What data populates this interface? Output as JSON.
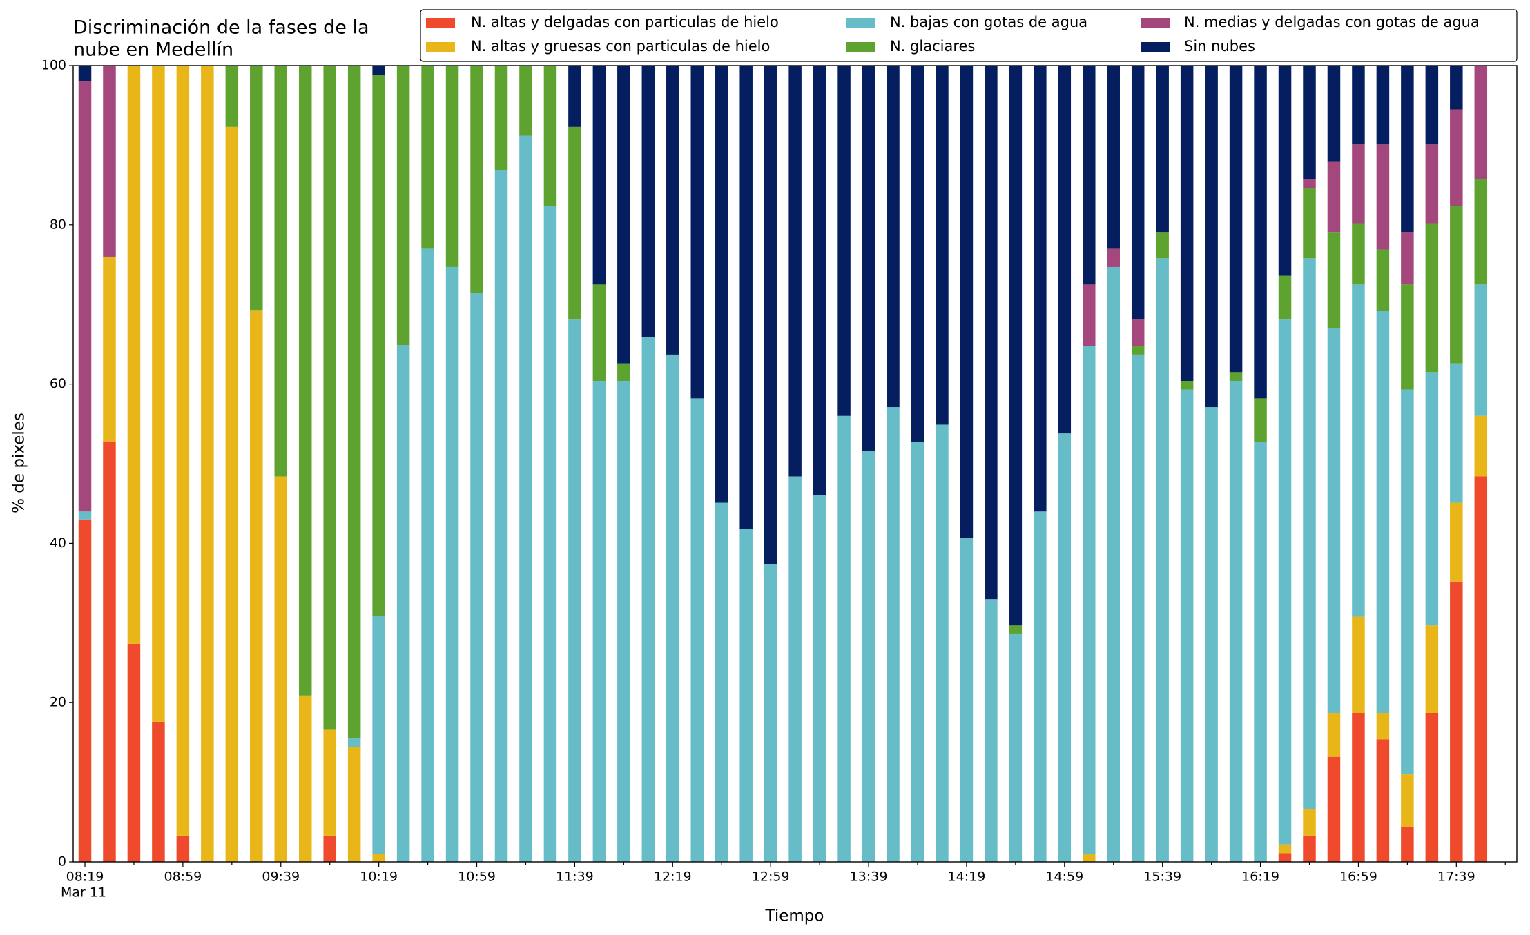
{
  "chart_data": {
    "type": "stacked_bar",
    "title": [
      "Discriminación de la fases de la",
      "nube en Medellín"
    ],
    "xlabel": "Tiempo",
    "ylabel": "% de pixeles",
    "date_label": "Mar 11",
    "categories": [
      "08:19",
      null,
      null,
      null,
      "08:59",
      null,
      null,
      null,
      "09:39",
      null,
      null,
      null,
      "10:19",
      null,
      null,
      null,
      "10:59",
      null,
      null,
      null,
      "11:39",
      null,
      null,
      null,
      "12:19",
      null,
      null,
      null,
      "12:59",
      null,
      null,
      null,
      "13:39",
      null,
      null,
      null,
      "14:19",
      null,
      null,
      null,
      "14:59",
      null,
      null,
      null,
      "15:39",
      null,
      null,
      null,
      "16:19",
      null,
      null,
      null,
      "16:59",
      null,
      null,
      null,
      "17:39",
      null
    ],
    "ylim": [
      0,
      100
    ],
    "yticks": [
      0,
      20,
      40,
      60,
      80,
      100
    ],
    "series": [
      {
        "name": "N. altas y delgadas con particulas de hielo",
        "color": "#ee4a2b",
        "values": [
          43,
          52.8,
          27.4,
          17.6,
          3.3,
          0,
          0,
          0,
          0,
          0,
          3.3,
          0,
          0,
          0,
          0,
          0,
          0,
          0,
          0,
          0,
          0,
          0,
          0,
          0,
          0,
          0,
          0,
          0,
          0,
          0,
          0,
          0,
          0,
          0,
          0,
          0,
          0,
          0,
          0,
          0,
          0,
          0,
          0,
          0,
          0,
          0,
          0,
          0,
          0,
          1.1,
          3.3,
          13.2,
          18.7,
          15.4,
          4.4,
          18.7,
          35.2,
          48.4
        ]
      },
      {
        "name": "N. altas y gruesas con particulas de hielo",
        "color": "#e8b619",
        "values": [
          0,
          23.2,
          72.6,
          82.4,
          96.7,
          100,
          92.3,
          69.3,
          48.4,
          20.9,
          13.3,
          14.4,
          1,
          0,
          0,
          0,
          0,
          0,
          0,
          0,
          0,
          0,
          0,
          0,
          0,
          0,
          0,
          0,
          0,
          0,
          0,
          0,
          0,
          0,
          0,
          0,
          0,
          0,
          0,
          0,
          0,
          1,
          0,
          0,
          0,
          0,
          0,
          0,
          0,
          1.1,
          3.3,
          5.5,
          12.1,
          3.3,
          6.6,
          11,
          9.9,
          7.6
        ]
      },
      {
        "name": "N. bajas con gotas de agua",
        "color": "#66bdc8",
        "values": [
          1,
          0,
          0,
          0,
          0,
          0,
          0,
          0,
          0,
          0,
          0,
          1.1,
          29.9,
          64.9,
          77,
          74.7,
          71.4,
          86.9,
          91.2,
          82.4,
          68.1,
          60.4,
          60.4,
          65.9,
          63.7,
          58.2,
          45.1,
          41.8,
          37.4,
          48.4,
          46.1,
          56,
          51.6,
          57.1,
          52.7,
          54.9,
          40.7,
          33,
          28.6,
          44,
          53.8,
          63.8,
          74.7,
          63.7,
          75.8,
          59.3,
          57.1,
          60.4,
          52.7,
          65.9,
          69.2,
          48.3,
          41.7,
          50.5,
          48.3,
          31.8,
          17.5,
          16.5
        ]
      },
      {
        "name": "N. glaciares",
        "color": "#5ea22f",
        "values": [
          0,
          0,
          0,
          0,
          0,
          0,
          7.7,
          30.7,
          51.6,
          79.1,
          83.4,
          84.5,
          67.9,
          35.1,
          23,
          25.3,
          28.6,
          13.1,
          8.8,
          17.6,
          24.2,
          12.1,
          2.2,
          0,
          0,
          0,
          0,
          0,
          0,
          0,
          0,
          0,
          0,
          0,
          0,
          0,
          0,
          0,
          1.1,
          0,
          0,
          0,
          0,
          1.1,
          3.3,
          1.1,
          0,
          1.1,
          5.5,
          5.5,
          8.8,
          12.1,
          7.7,
          7.7,
          13.2,
          18.7,
          19.8,
          13.2
        ]
      },
      {
        "name": "N. medias y delgadas con gotas de agua",
        "color": "#a3477c",
        "values": [
          54,
          24,
          0,
          0,
          0,
          0,
          0,
          0,
          0,
          0,
          0,
          0,
          0,
          0,
          0,
          0,
          0,
          0,
          0,
          0,
          0,
          0,
          0,
          0,
          0,
          0,
          0,
          0,
          0,
          0,
          0,
          0,
          0,
          0,
          0,
          0,
          0,
          0,
          0,
          0,
          0,
          7.7,
          2.3,
          3.3,
          0,
          0,
          0,
          0,
          0,
          0,
          1.1,
          8.8,
          9.9,
          13.2,
          6.6,
          9.9,
          12.1,
          14.3
        ]
      },
      {
        "name": "Sin nubes",
        "color": "#041e5f",
        "values": [
          2,
          0,
          0,
          0,
          0,
          0,
          0,
          0,
          0,
          0,
          0,
          0,
          1.2,
          0,
          0,
          0,
          0,
          0,
          0,
          0,
          7.7,
          27.5,
          37.4,
          34.1,
          36.3,
          41.8,
          54.9,
          58.2,
          62.6,
          51.6,
          53.9,
          44,
          48.4,
          42.9,
          47.3,
          45.1,
          59.3,
          67,
          70.3,
          56,
          46.2,
          27.5,
          23,
          31.9,
          20.9,
          39.6,
          42.9,
          38.5,
          41.8,
          26.4,
          14.3,
          12.1,
          9.9,
          9.9,
          20.9,
          9.9,
          5.5,
          0
        ]
      }
    ]
  }
}
